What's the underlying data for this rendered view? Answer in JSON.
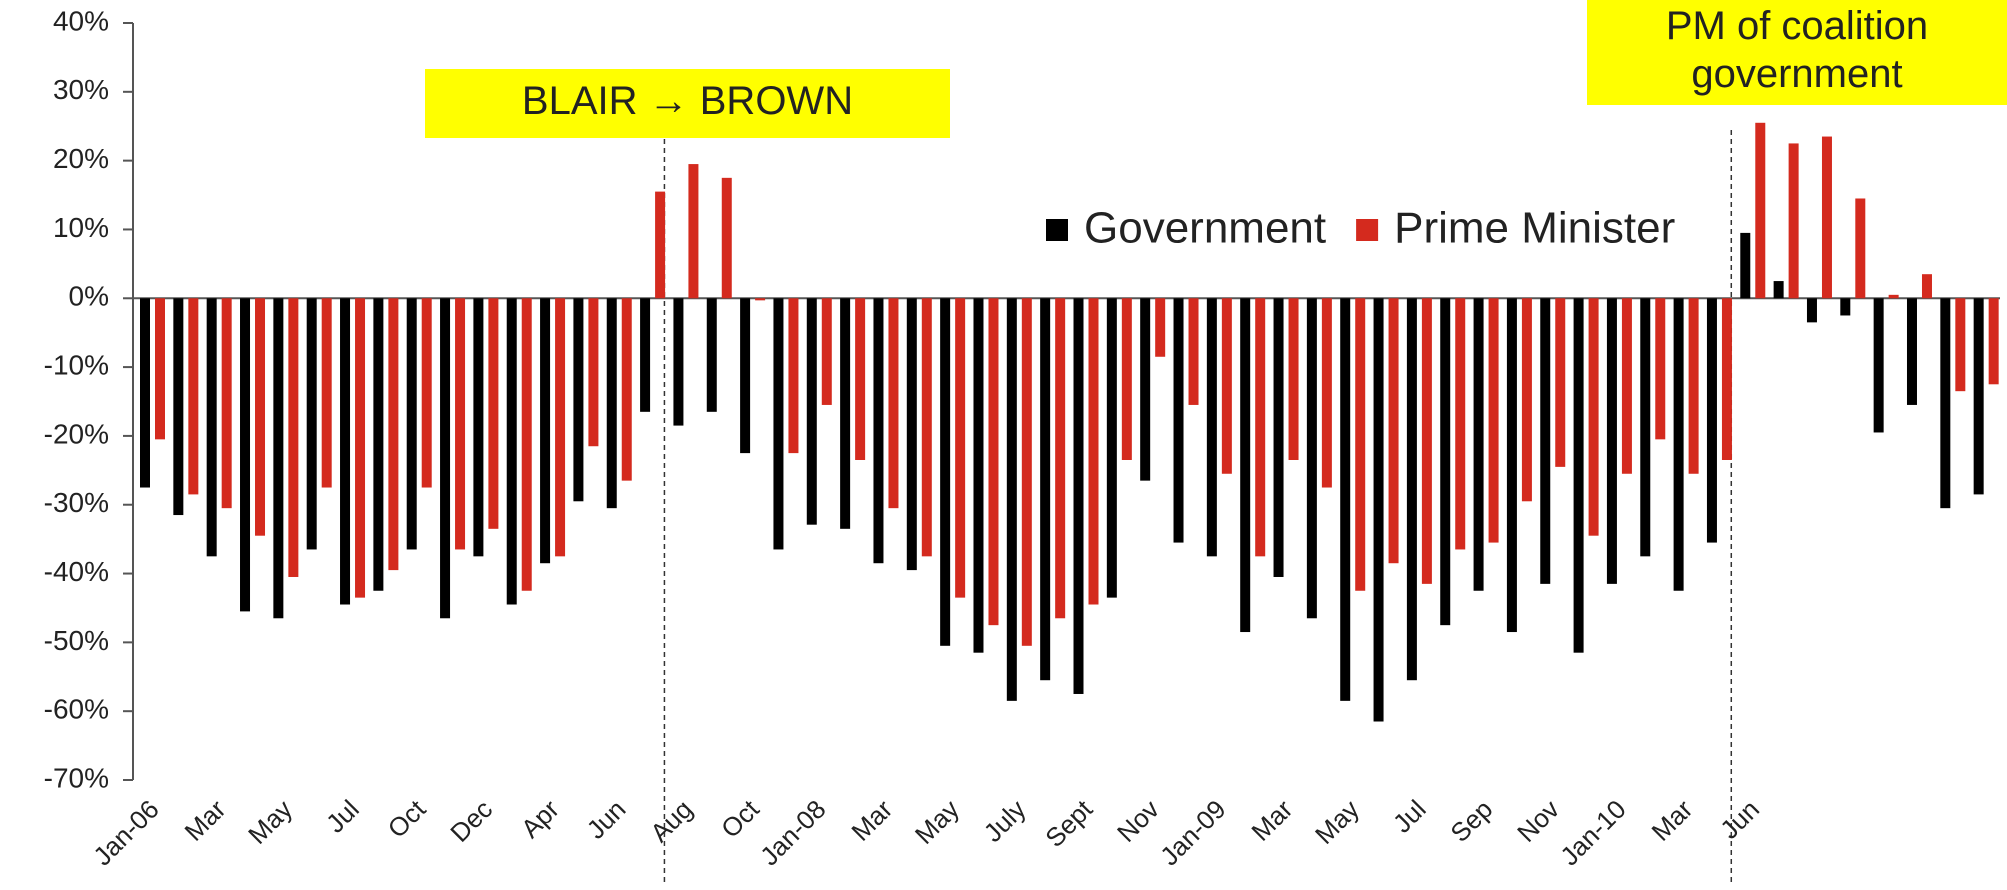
{
  "chart_data": {
    "type": "bar",
    "categories": [
      "Jan-06",
      null,
      "Mar",
      null,
      "May",
      null,
      "Jul",
      null,
      "Oct",
      null,
      "Dec",
      null,
      "Apr",
      null,
      "Jun",
      null,
      "Aug",
      null,
      "Oct",
      null,
      "Jan-08",
      null,
      "Mar",
      null,
      "May",
      null,
      "July",
      null,
      "Sept",
      null,
      "Nov",
      null,
      "Jan-09",
      null,
      "Mar",
      null,
      "May",
      null,
      "Jul",
      null,
      "Sep",
      null,
      "Nov",
      null,
      "Jan-10",
      null,
      "Mar",
      null,
      "Jun",
      null,
      null,
      null,
      null,
      null,
      null,
      null
    ],
    "series": [
      {
        "name": "Government",
        "color": "#000000",
        "values": [
          -27.5,
          -31.5,
          -37.5,
          -45.5,
          -46.5,
          -36.5,
          -44.5,
          -42.5,
          -36.5,
          -46.5,
          -37.5,
          -44.5,
          -38.5,
          -29.5,
          -30.5,
          -16.5,
          -18.5,
          -16.5,
          -22.5,
          -36.5,
          -32.9,
          -33.5,
          -38.5,
          -39.5,
          -50.5,
          -51.5,
          -58.5,
          -55.5,
          -57.5,
          -43.5,
          -26.5,
          -35.5,
          -37.5,
          -48.5,
          -40.5,
          -46.5,
          -58.5,
          -61.5,
          -55.5,
          -47.5,
          -42.5,
          -48.5,
          -41.5,
          -51.5,
          -41.5,
          -37.5,
          -42.5,
          -35.5,
          9.5,
          2.5,
          -3.5,
          -2.5,
          -19.5,
          -15.5,
          -30.5,
          -28.5
        ]
      },
      {
        "name": "Prime Minister",
        "color": "#d42a1e",
        "values": [
          -20.5,
          -28.5,
          -30.5,
          -34.5,
          -40.5,
          -27.5,
          -43.5,
          -39.5,
          -27.5,
          -36.5,
          -33.5,
          -42.5,
          -37.5,
          -21.5,
          -26.5,
          15.5,
          19.5,
          17.5,
          -0.3,
          -22.5,
          -15.5,
          -23.5,
          -30.5,
          -37.5,
          -43.5,
          -47.5,
          -50.5,
          -46.5,
          -44.5,
          -23.5,
          -8.5,
          -15.5,
          -25.5,
          -37.5,
          -23.5,
          -27.5,
          -42.5,
          -38.5,
          -41.5,
          -36.5,
          -35.5,
          -29.5,
          -24.5,
          -34.5,
          -25.5,
          -20.5,
          -25.5,
          -23.5,
          25.5,
          22.5,
          23.5,
          14.5,
          0.5,
          3.5,
          -13.5,
          -12.5
        ]
      }
    ],
    "ylim": [
      -70,
      40
    ],
    "yticks": [
      {
        "value": 40,
        "label": "40%"
      },
      {
        "value": 30,
        "label": "30%"
      },
      {
        "value": 20,
        "label": "20%"
      },
      {
        "value": 10,
        "label": "10%"
      },
      {
        "value": 0,
        "label": "0%"
      },
      {
        "value": -10,
        "label": "-10%"
      },
      {
        "value": -20,
        "label": "-20%"
      },
      {
        "value": -30,
        "label": "-30%"
      },
      {
        "value": -40,
        "label": "-40%"
      },
      {
        "value": -50,
        "label": "-50%"
      },
      {
        "value": -60,
        "label": "-60%"
      },
      {
        "value": -70,
        "label": "-70%"
      }
    ],
    "grid": false,
    "legend": "top",
    "annotations": [
      {
        "lines": [
          "BLAIR → BROWN"
        ],
        "color": "#ffff00"
      },
      {
        "lines": [
          "PM of coalition",
          "government"
        ],
        "color": "#ffff00"
      }
    ]
  }
}
